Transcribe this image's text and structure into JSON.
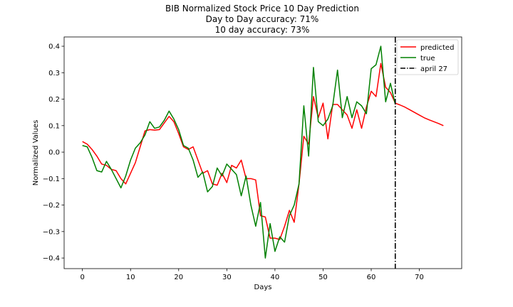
{
  "chart_data": {
    "type": "line",
    "title_lines": [
      "BIB Normalized Stock Price 10 Day Prediction",
      "Day to Day accuracy: 71%",
      "10 day accuracy: 73%"
    ],
    "xlabel": "Days",
    "ylabel": "Normalized Values",
    "xlim": [
      -3.8,
      78.8
    ],
    "ylim": [
      -0.44,
      0.435
    ],
    "x_ticks": [
      0,
      10,
      20,
      30,
      40,
      50,
      60,
      70
    ],
    "y_ticks": [
      -0.4,
      -0.3,
      -0.2,
      -0.1,
      0.0,
      0.1,
      0.2,
      0.3,
      0.4
    ],
    "x_tick_labels": [
      "0",
      "10",
      "20",
      "30",
      "40",
      "50",
      "60",
      "70"
    ],
    "y_tick_labels": [
      "−0.4",
      "−0.3",
      "−0.2",
      "−0.1",
      "0.0",
      "0.1",
      "0.2",
      "0.3",
      "0.4"
    ],
    "grid": false,
    "legend_position": "top-right",
    "series": [
      {
        "name": "predicted",
        "color": "#ff0000",
        "x": [
          0,
          1,
          2,
          3,
          4,
          5,
          6,
          7,
          8,
          9,
          10,
          11,
          12,
          13,
          14,
          15,
          16,
          17,
          18,
          19,
          20,
          21,
          22,
          23,
          24,
          25,
          26,
          27,
          28,
          29,
          30,
          31,
          32,
          33,
          34,
          35,
          36,
          37,
          38,
          39,
          40,
          41,
          42,
          43,
          44,
          45,
          46,
          47,
          48,
          49,
          50,
          51,
          52,
          53,
          54,
          55,
          56,
          57,
          58,
          59,
          60,
          61,
          62,
          63,
          64,
          65,
          66,
          67,
          68,
          69,
          70,
          71,
          72,
          73,
          74,
          75
        ],
        "values": [
          0.04,
          0.03,
          0.01,
          -0.015,
          -0.045,
          -0.05,
          -0.065,
          -0.07,
          -0.1,
          -0.12,
          -0.08,
          -0.04,
          0.02,
          0.08,
          0.085,
          0.083,
          0.085,
          0.11,
          0.135,
          0.115,
          0.07,
          0.02,
          0.01,
          0.02,
          -0.03,
          -0.08,
          -0.07,
          -0.12,
          -0.125,
          -0.08,
          -0.115,
          -0.05,
          -0.06,
          -0.03,
          -0.1,
          -0.1,
          -0.105,
          -0.24,
          -0.245,
          -0.325,
          -0.325,
          -0.33,
          -0.28,
          -0.22,
          -0.265,
          -0.12,
          0.06,
          0.03,
          0.21,
          0.13,
          0.185,
          0.05,
          0.18,
          0.18,
          0.16,
          0.14,
          0.09,
          0.16,
          0.09,
          0.17,
          0.23,
          0.21,
          0.335,
          0.245,
          0.225,
          0.185,
          0.178,
          0.17,
          0.16,
          0.15,
          0.14,
          0.13,
          0.122,
          0.115,
          0.108,
          0.1
        ]
      },
      {
        "name": "true",
        "color": "#008000",
        "x": [
          0,
          1,
          2,
          3,
          4,
          5,
          6,
          7,
          8,
          9,
          10,
          11,
          12,
          13,
          14,
          15,
          16,
          17,
          18,
          19,
          20,
          21,
          22,
          23,
          24,
          25,
          26,
          27,
          28,
          29,
          30,
          31,
          32,
          33,
          34,
          35,
          36,
          37,
          38,
          39,
          40,
          41,
          42,
          43,
          44,
          45,
          46,
          47,
          48,
          49,
          50,
          51,
          52,
          53,
          54,
          55,
          56,
          57,
          58,
          59,
          60,
          61,
          62,
          63,
          64,
          65
        ],
        "values": [
          0.025,
          0.02,
          -0.02,
          -0.07,
          -0.075,
          -0.035,
          -0.065,
          -0.1,
          -0.135,
          -0.09,
          -0.03,
          0.015,
          0.035,
          0.065,
          0.115,
          0.09,
          0.095,
          0.12,
          0.155,
          0.125,
          0.085,
          0.025,
          0.015,
          -0.03,
          -0.095,
          -0.075,
          -0.15,
          -0.13,
          -0.06,
          -0.09,
          -0.045,
          -0.065,
          -0.085,
          -0.165,
          -0.09,
          -0.2,
          -0.28,
          -0.19,
          -0.4,
          -0.27,
          -0.375,
          -0.32,
          -0.34,
          -0.24,
          -0.2,
          -0.12,
          0.175,
          -0.015,
          0.32,
          0.115,
          0.1,
          0.125,
          0.175,
          0.31,
          0.13,
          0.21,
          0.13,
          0.19,
          0.175,
          0.145,
          0.315,
          0.33,
          0.4,
          0.19,
          0.26,
          0.18
        ]
      }
    ],
    "reference_line": {
      "name": "april 27",
      "x": 65,
      "color": "#000000",
      "style": "dash-dot"
    }
  }
}
